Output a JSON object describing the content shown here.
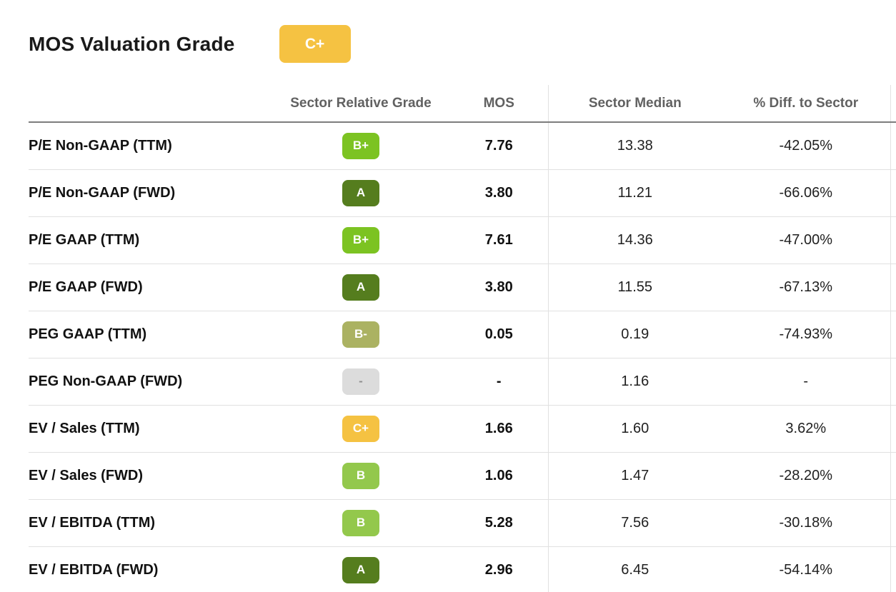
{
  "header": {
    "title": "MOS Valuation Grade",
    "overall_grade": "C+",
    "overall_grade_color": "#f5c242",
    "overall_grade_text_color": "#ffffff"
  },
  "table": {
    "columns": {
      "grade": "Sector Relative Grade",
      "mos": "MOS",
      "sector_median": "Sector Median",
      "diff_to_sector": "% Diff. to Sector"
    },
    "rows": [
      {
        "label": "P/E Non-GAAP (TTM)",
        "grade": "B+",
        "grade_color": "#7cc322",
        "grade_text_color": "#ffffff",
        "mos": "7.76",
        "sector_median": "13.38",
        "diff_to_sector": "-42.05%"
      },
      {
        "label": "P/E Non-GAAP (FWD)",
        "grade": "A",
        "grade_color": "#557d1e",
        "grade_text_color": "#ffffff",
        "mos": "3.80",
        "sector_median": "11.21",
        "diff_to_sector": "-66.06%"
      },
      {
        "label": "P/E GAAP (TTM)",
        "grade": "B+",
        "grade_color": "#7cc322",
        "grade_text_color": "#ffffff",
        "mos": "7.61",
        "sector_median": "14.36",
        "diff_to_sector": "-47.00%"
      },
      {
        "label": "P/E GAAP (FWD)",
        "grade": "A",
        "grade_color": "#557d1e",
        "grade_text_color": "#ffffff",
        "mos": "3.80",
        "sector_median": "11.55",
        "diff_to_sector": "-67.13%"
      },
      {
        "label": "PEG GAAP (TTM)",
        "grade": "B-",
        "grade_color": "#abb262",
        "grade_text_color": "#ffffff",
        "mos": "0.05",
        "sector_median": "0.19",
        "diff_to_sector": "-74.93%"
      },
      {
        "label": "PEG Non-GAAP (FWD)",
        "grade": "-",
        "grade_color": "#dcdcdc",
        "grade_text_color": "#8f8f8f",
        "mos": "-",
        "sector_median": "1.16",
        "diff_to_sector": "-"
      },
      {
        "label": "EV / Sales (TTM)",
        "grade": "C+",
        "grade_color": "#f5c242",
        "grade_text_color": "#ffffff",
        "mos": "1.66",
        "sector_median": "1.60",
        "diff_to_sector": "3.62%"
      },
      {
        "label": "EV / Sales (FWD)",
        "grade": "B",
        "grade_color": "#93c84c",
        "grade_text_color": "#ffffff",
        "mos": "1.06",
        "sector_median": "1.47",
        "diff_to_sector": "-28.20%"
      },
      {
        "label": "EV / EBITDA (TTM)",
        "grade": "B",
        "grade_color": "#93c84c",
        "grade_text_color": "#ffffff",
        "mos": "5.28",
        "sector_median": "7.56",
        "diff_to_sector": "-30.18%"
      },
      {
        "label": "EV / EBITDA (FWD)",
        "grade": "A",
        "grade_color": "#557d1e",
        "grade_text_color": "#ffffff",
        "mos": "2.96",
        "sector_median": "6.45",
        "diff_to_sector": "-54.14%"
      }
    ]
  }
}
